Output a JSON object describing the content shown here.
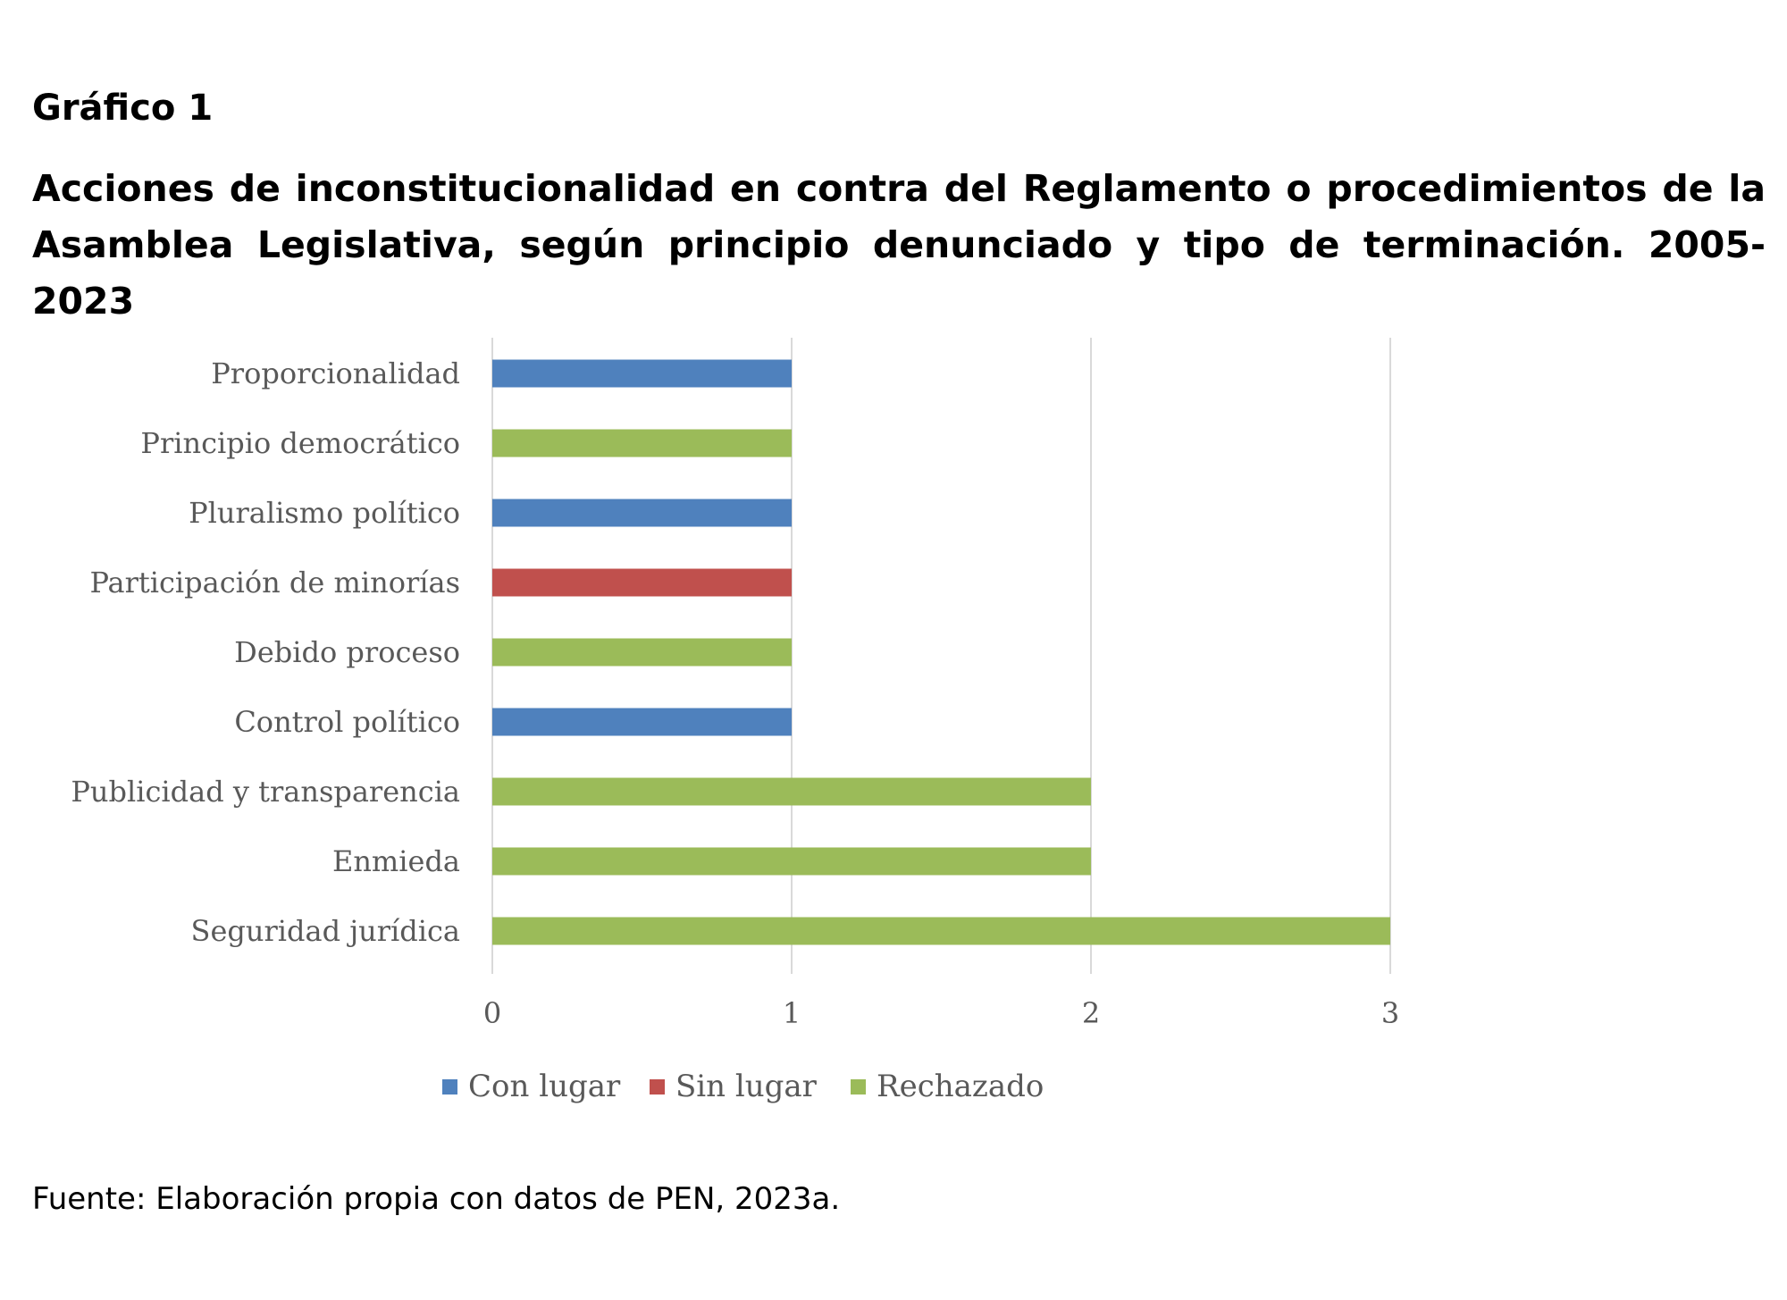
{
  "kicker": "Gráfico 1",
  "title": "Acciones de inconstitucionalidad en contra del Reglamento o procedimientos de la Asamblea Legislativa, según principio denunciado y tipo de terminación. 2005-2023",
  "source": "Fuente: Elaboración propia con datos de PEN, 2023a.",
  "chart_data": {
    "type": "bar",
    "orientation": "horizontal",
    "categories": [
      "Proporcionalidad",
      "Principio democrático",
      "Pluralismo político",
      "Participación de minorías",
      "Debido proceso",
      "Control político",
      "Publicidad y transparencia",
      "Enmieda",
      "Seguridad jurídica"
    ],
    "series": [
      {
        "name": "Con lugar",
        "color": "#4F81BD",
        "values": [
          1,
          0,
          1,
          0,
          0,
          1,
          0,
          0,
          0
        ]
      },
      {
        "name": "Sin lugar",
        "color": "#C0504D",
        "values": [
          0,
          0,
          0,
          1,
          0,
          0,
          0,
          0,
          0
        ]
      },
      {
        "name": "Rechazado",
        "color": "#9BBB59",
        "values": [
          0,
          1,
          0,
          0,
          1,
          0,
          2,
          2,
          3
        ]
      }
    ],
    "xlim": [
      0,
      3
    ],
    "xticks": [
      "0",
      "1",
      "2",
      "3"
    ],
    "grid": "vertical",
    "legend": "bottom",
    "stacked": true
  }
}
